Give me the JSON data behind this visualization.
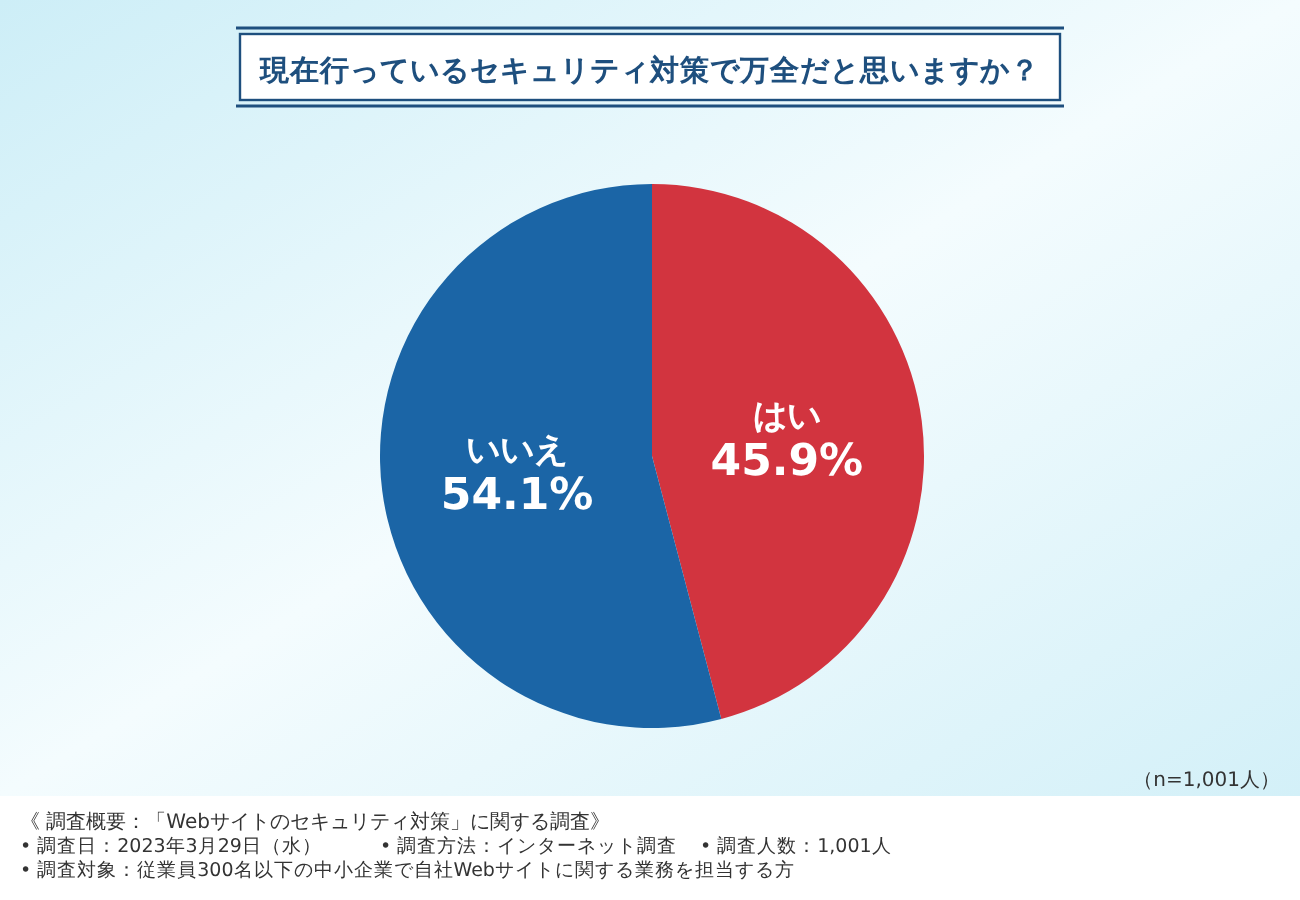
{
  "chart_data": {
    "type": "pie",
    "title": "現在行っているセキュリティ対策で万全だと思いますか？",
    "categories": [
      "はい",
      "いいえ"
    ],
    "values": [
      45.9,
      54.1
    ],
    "colors": [
      "#d2343f",
      "#1b65a6"
    ],
    "value_labels": [
      "45.9%",
      "54.1%"
    ],
    "annotations": [
      "（n=1,001人）",
      "《 調査概要：「Webサイトのセキュリティ対策」に関する調査》",
      "• 調査日：2023年3月29日（水）",
      "• 調査方法：インターネット調査",
      "• 調査人数：1,001人",
      "• 調査対象：従業員300名以下の中小企業で自社Webサイトに関する業務を担当する方"
    ]
  }
}
